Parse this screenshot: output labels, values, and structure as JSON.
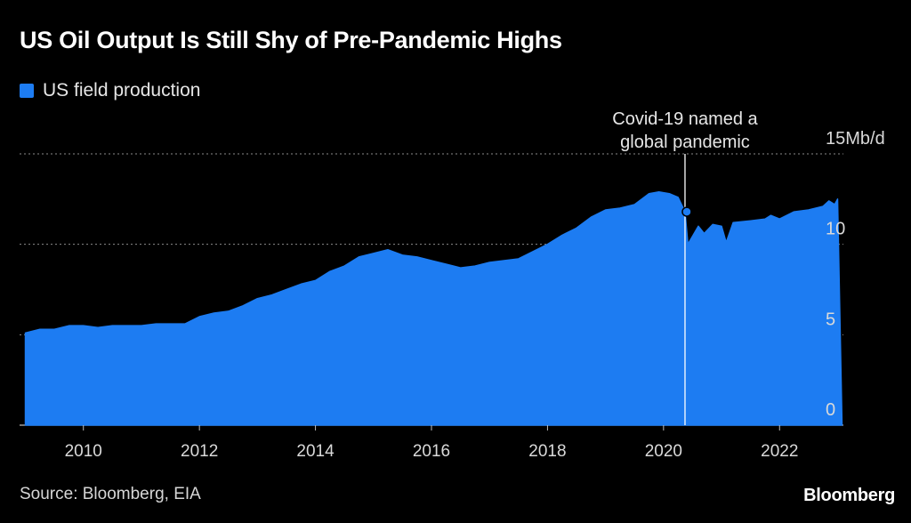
{
  "title": "US Oil Output Is Still Shy of Pre-Pandemic Highs",
  "source": "Source: Bloomberg, EIA",
  "brand": "Bloomberg",
  "colors": {
    "series": "#1d7cf2",
    "background": "#000000",
    "grid": "#8a8a8a",
    "text": "#ffffff",
    "annotation_line": "#ffffff"
  },
  "chart_data": {
    "type": "area",
    "title": "US Oil Output Is Still Shy of Pre-Pandemic Highs",
    "xlabel": "",
    "ylabel": "",
    "xlim": [
      2008.9,
      2023.1
    ],
    "ylim": [
      0,
      15
    ],
    "x_ticks": [
      2010,
      2012,
      2014,
      2016,
      2018,
      2020,
      2022
    ],
    "x_tick_labels": [
      "2010",
      "2012",
      "2014",
      "2016",
      "2018",
      "2020",
      "2022"
    ],
    "y_ticks": [
      0,
      5,
      10,
      15
    ],
    "y_tick_labels": [
      "0",
      "5",
      "10",
      "15Mb/d"
    ],
    "legend": [
      "US field production"
    ],
    "legend_position": "top-left",
    "annotation": {
      "x": 2020.37,
      "text_lines": [
        "Covid-19 named a",
        "global pandemic"
      ]
    },
    "series": [
      {
        "name": "US field production",
        "x": [
          2009.0,
          2009.25,
          2009.5,
          2009.75,
          2010.0,
          2010.25,
          2010.5,
          2010.75,
          2011.0,
          2011.25,
          2011.5,
          2011.75,
          2012.0,
          2012.25,
          2012.5,
          2012.75,
          2013.0,
          2013.25,
          2013.5,
          2013.75,
          2014.0,
          2014.25,
          2014.5,
          2014.75,
          2015.0,
          2015.25,
          2015.5,
          2015.75,
          2016.0,
          2016.25,
          2016.5,
          2016.75,
          2017.0,
          2017.25,
          2017.5,
          2017.75,
          2018.0,
          2018.25,
          2018.5,
          2018.75,
          2019.0,
          2019.25,
          2019.5,
          2019.75,
          2019.92,
          2020.1,
          2020.25,
          2020.37,
          2020.42,
          2020.6,
          2020.7,
          2020.85,
          2021.0,
          2021.08,
          2021.2,
          2021.5,
          2021.75,
          2021.85,
          2022.0,
          2022.25,
          2022.5,
          2022.75,
          2022.85,
          2022.95,
          2023.0
        ],
        "values": [
          5.1,
          5.3,
          5.3,
          5.5,
          5.5,
          5.4,
          5.5,
          5.5,
          5.5,
          5.6,
          5.6,
          5.6,
          6.0,
          6.2,
          6.3,
          6.6,
          7.0,
          7.2,
          7.5,
          7.8,
          8.0,
          8.5,
          8.8,
          9.3,
          9.5,
          9.7,
          9.4,
          9.3,
          9.1,
          8.9,
          8.7,
          8.8,
          9.0,
          9.1,
          9.2,
          9.6,
          10.0,
          10.5,
          10.9,
          11.5,
          11.9,
          12.0,
          12.2,
          12.8,
          12.9,
          12.8,
          12.6,
          11.8,
          10.0,
          11.0,
          10.6,
          11.1,
          11.0,
          10.1,
          11.2,
          11.3,
          11.4,
          11.6,
          11.4,
          11.8,
          11.9,
          12.1,
          12.4,
          12.2,
          12.5
        ]
      }
    ]
  }
}
